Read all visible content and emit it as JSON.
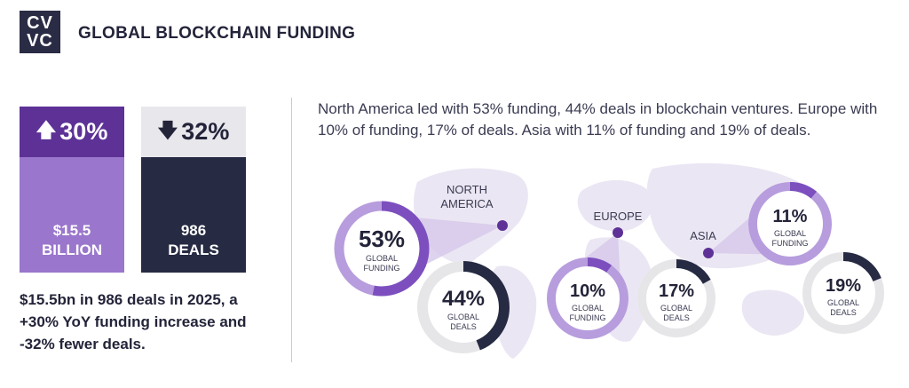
{
  "logo": {
    "line1": "CV",
    "line2": "VC"
  },
  "title": "GLOBAL BLOCKCHAIN FUNDING",
  "stats": {
    "funding": {
      "change": "30%",
      "value": "$15.5",
      "unit": "BILLION"
    },
    "deals": {
      "change": "32%",
      "value": "986",
      "unit": "DEALS"
    }
  },
  "summary": "$15.5bn in 986 deals in 2025, a +30% YoY funding increase and -32% fewer deals.",
  "description": "North America led with 53% funding, 44% deals in blockchain ventures. Europe with 10% of funding, 17% of deals. Asia with 11% of funding and 19% of deals.",
  "colors": {
    "purple": "#7d4fbe",
    "dark_purple": "#5d3196",
    "light_purple": "#9a76cc",
    "navy": "#262a42",
    "ring_bg": "#e6e6e9",
    "map": "#ebe6f3"
  },
  "chart_data": {
    "type": "pie",
    "regions": [
      {
        "name": "NORTH AMERICA",
        "funding_pct": 53,
        "deals_pct": 44
      },
      {
        "name": "EUROPE",
        "funding_pct": 10,
        "deals_pct": 17
      },
      {
        "name": "ASIA",
        "funding_pct": 11,
        "deals_pct": 19
      }
    ],
    "funding_label": [
      "GLOBAL",
      "FUNDING"
    ],
    "deals_label": [
      "GLOBAL",
      "DEALS"
    ]
  }
}
